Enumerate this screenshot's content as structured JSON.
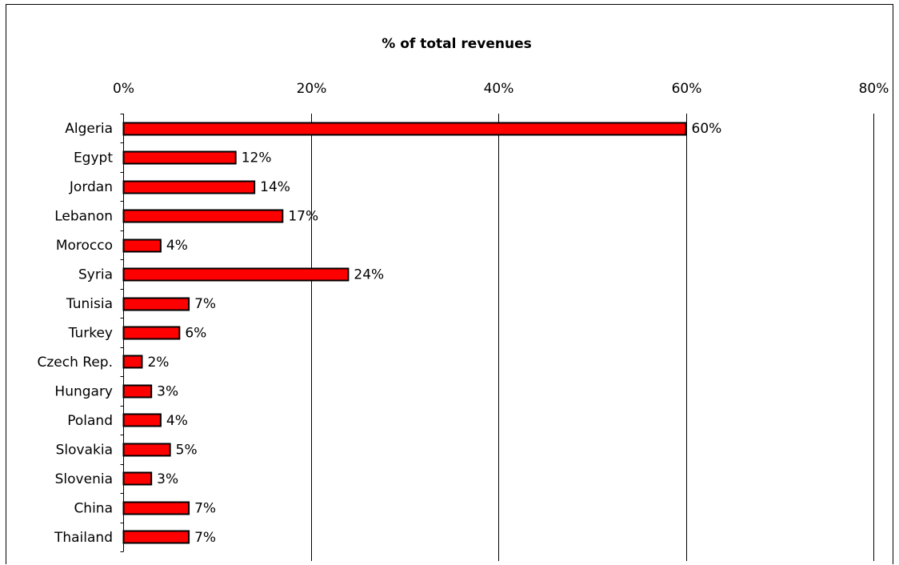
{
  "chart_data": {
    "type": "bar",
    "orientation": "horizontal",
    "title": "% of total revenues",
    "categories": [
      "Algeria",
      "Egypt",
      "Jordan",
      "Lebanon",
      "Morocco",
      "Syria",
      "Tunisia",
      "Turkey",
      "Czech Rep.",
      "Hungary",
      "Poland",
      "Slovakia",
      "Slovenia",
      "China",
      "Thailand"
    ],
    "values": [
      60,
      12,
      14,
      17,
      4,
      24,
      7,
      6,
      2,
      3,
      4,
      5,
      3,
      7,
      7
    ],
    "data_labels": [
      "60%",
      "12%",
      "14%",
      "17%",
      "4%",
      "24%",
      "7%",
      "6%",
      "2%",
      "3%",
      "4%",
      "5%",
      "3%",
      "7%",
      "7%"
    ],
    "xlim": [
      0,
      80
    ],
    "x_ticks": [
      0,
      20,
      40,
      60,
      80
    ],
    "x_tick_labels": [
      "0%",
      "20%",
      "40%",
      "60%",
      "80%"
    ],
    "x_axis_position": "top",
    "grid": true,
    "legend": "none",
    "bar_color": "#ff0000",
    "bar_edge_color": "#000000"
  }
}
